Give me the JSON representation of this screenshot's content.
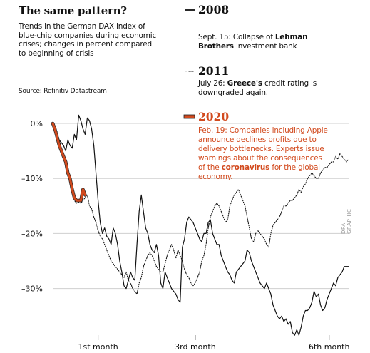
{
  "title": "The same pattern?",
  "subtitle": "Trends in the German DAX index of blue-chip companies during economic crises; changes in percent compared to beginning of crisis",
  "source": "Source: Refinitiv Datastream",
  "credit": "DPA GRAPHIC",
  "colors": {
    "s2008": "#111111",
    "s2011": "#111111",
    "s2020": "#d24a1e",
    "grid": "#cfcfcf"
  },
  "legend": {
    "y2008": {
      "year": "2008",
      "text_prefix": "Sept. 15: Collapse of ",
      "text_bold": "Lehman Brothers",
      "text_suffix": " investment bank"
    },
    "y2011": {
      "year": "2011",
      "text_prefix": "July 26: ",
      "text_bold": "Greece's",
      "text_suffix": " credit rating is downgraded again."
    },
    "y2020": {
      "year": "2020",
      "text_prefix": "Feb. 19: Companies including Apple announce declines profits due to delivery bottlenecks. Experts issue warnings about the consequences of the ",
      "text_bold": "coronavirus",
      "text_suffix": " for the global economy."
    }
  },
  "chart_data": {
    "type": "line",
    "xlabel": "",
    "ylabel": "",
    "y_ticks": [
      "0%",
      "–10%",
      "–20%",
      "–30%"
    ],
    "y_tick_values": [
      0,
      -10,
      -20,
      -30
    ],
    "ylim": [
      -40,
      3
    ],
    "xlim": [
      0,
      137
    ],
    "x_ticks": [
      "1st month",
      "3rd month",
      "6th month"
    ],
    "x_tick_values": [
      21,
      66,
      128
    ],
    "grid": "horizontal",
    "series": [
      {
        "name": "2008",
        "style": "solid",
        "values": [
          0,
          -1,
          -2,
          -3,
          -3.5,
          -4,
          -5,
          -3,
          -4,
          -4.5,
          -2,
          -3,
          1.5,
          0.5,
          -1,
          -2,
          1,
          0.5,
          -1,
          -4,
          -9,
          -14,
          -18,
          -20,
          -19,
          -20.5,
          -21,
          -22,
          -19,
          -20,
          -22,
          -25,
          -27,
          -29.5,
          -30,
          -28.5,
          -27,
          -28,
          -28.5,
          -22,
          -16,
          -13,
          -16,
          -19,
          -20,
          -22,
          -23,
          -23.5,
          -22,
          -24,
          -29,
          -30,
          -27,
          -28,
          -29,
          -30,
          -30.5,
          -31,
          -32,
          -32.5,
          -22.5,
          -21,
          -18,
          -17,
          -17.5,
          -18,
          -19,
          -20,
          -21,
          -21.5,
          -20,
          -20,
          -18,
          -17.5,
          -20,
          -21,
          -22,
          -22,
          -24,
          -25,
          -26,
          -27,
          -27.5,
          -28.5,
          -29,
          -27,
          -26.5,
          -26,
          -25.5,
          -25,
          -23,
          -23.5,
          -25,
          -26,
          -27,
          -28,
          -29,
          -29.5,
          -30,
          -29,
          -30,
          -31,
          -33,
          -34,
          -35,
          -35.5,
          -35,
          -36,
          -35.5,
          -36.5,
          -36,
          -38,
          -38.5,
          -37.5,
          -38.5,
          -37,
          -35,
          -34,
          -34,
          -33.5,
          -32.5,
          -30.5,
          -31.5,
          -31,
          -33,
          -34,
          -33.5,
          -32,
          -31,
          -30,
          -29,
          -29.5,
          -28,
          -27.5,
          -27,
          -26,
          -26,
          -26
        ]
      },
      {
        "name": "2011",
        "style": "dotted",
        "values": [
          0,
          -0.5,
          -1.5,
          -3,
          -4.5,
          -5.5,
          -7,
          -8.5,
          -10,
          -12,
          -14,
          -14.5,
          -14.3,
          -14.5,
          -14,
          -13.5,
          -13,
          -15,
          -15.5,
          -17,
          -18,
          -19.5,
          -20.5,
          -21,
          -22,
          -23,
          -24,
          -25,
          -25.5,
          -26,
          -26.5,
          -27,
          -27.5,
          -28,
          -27,
          -28.5,
          -29,
          -30,
          -30.5,
          -31,
          -29,
          -28,
          -26,
          -25,
          -24,
          -23.5,
          -24,
          -25,
          -26,
          -26.5,
          -27,
          -27,
          -25.5,
          -24,
          -23,
          -22,
          -23,
          -24.5,
          -23,
          -24,
          -25,
          -26.5,
          -27.5,
          -28,
          -29,
          -29.5,
          -29,
          -28,
          -27,
          -25,
          -24,
          -22,
          -19,
          -17,
          -16,
          -15,
          -14.5,
          -15,
          -16,
          -17,
          -18,
          -17.5,
          -15,
          -14,
          -13,
          -12.5,
          -12,
          -13,
          -14,
          -15,
          -17,
          -19,
          -21,
          -21.5,
          -20,
          -19.5,
          -20,
          -20.5,
          -21,
          -22,
          -22.5,
          -20,
          -18.5,
          -18,
          -17.5,
          -17,
          -16,
          -15,
          -15,
          -14.5,
          -14,
          -14,
          -13.5,
          -13,
          -12,
          -12.5,
          -11.5,
          -11,
          -10,
          -9.5,
          -9,
          -9.5,
          -10,
          -10,
          -9,
          -8.5,
          -8,
          -8,
          -7.5,
          -7,
          -7,
          -6,
          -6.5,
          -5.5,
          -6,
          -6.5,
          -7,
          -6.5
        ]
      },
      {
        "name": "2020",
        "style": "solid-thick",
        "values": [
          0,
          -1,
          -2.5,
          -4,
          -5,
          -6,
          -7,
          -9,
          -10,
          -12,
          -13.5,
          -14,
          -14,
          -14,
          -12,
          -13
        ]
      }
    ]
  }
}
